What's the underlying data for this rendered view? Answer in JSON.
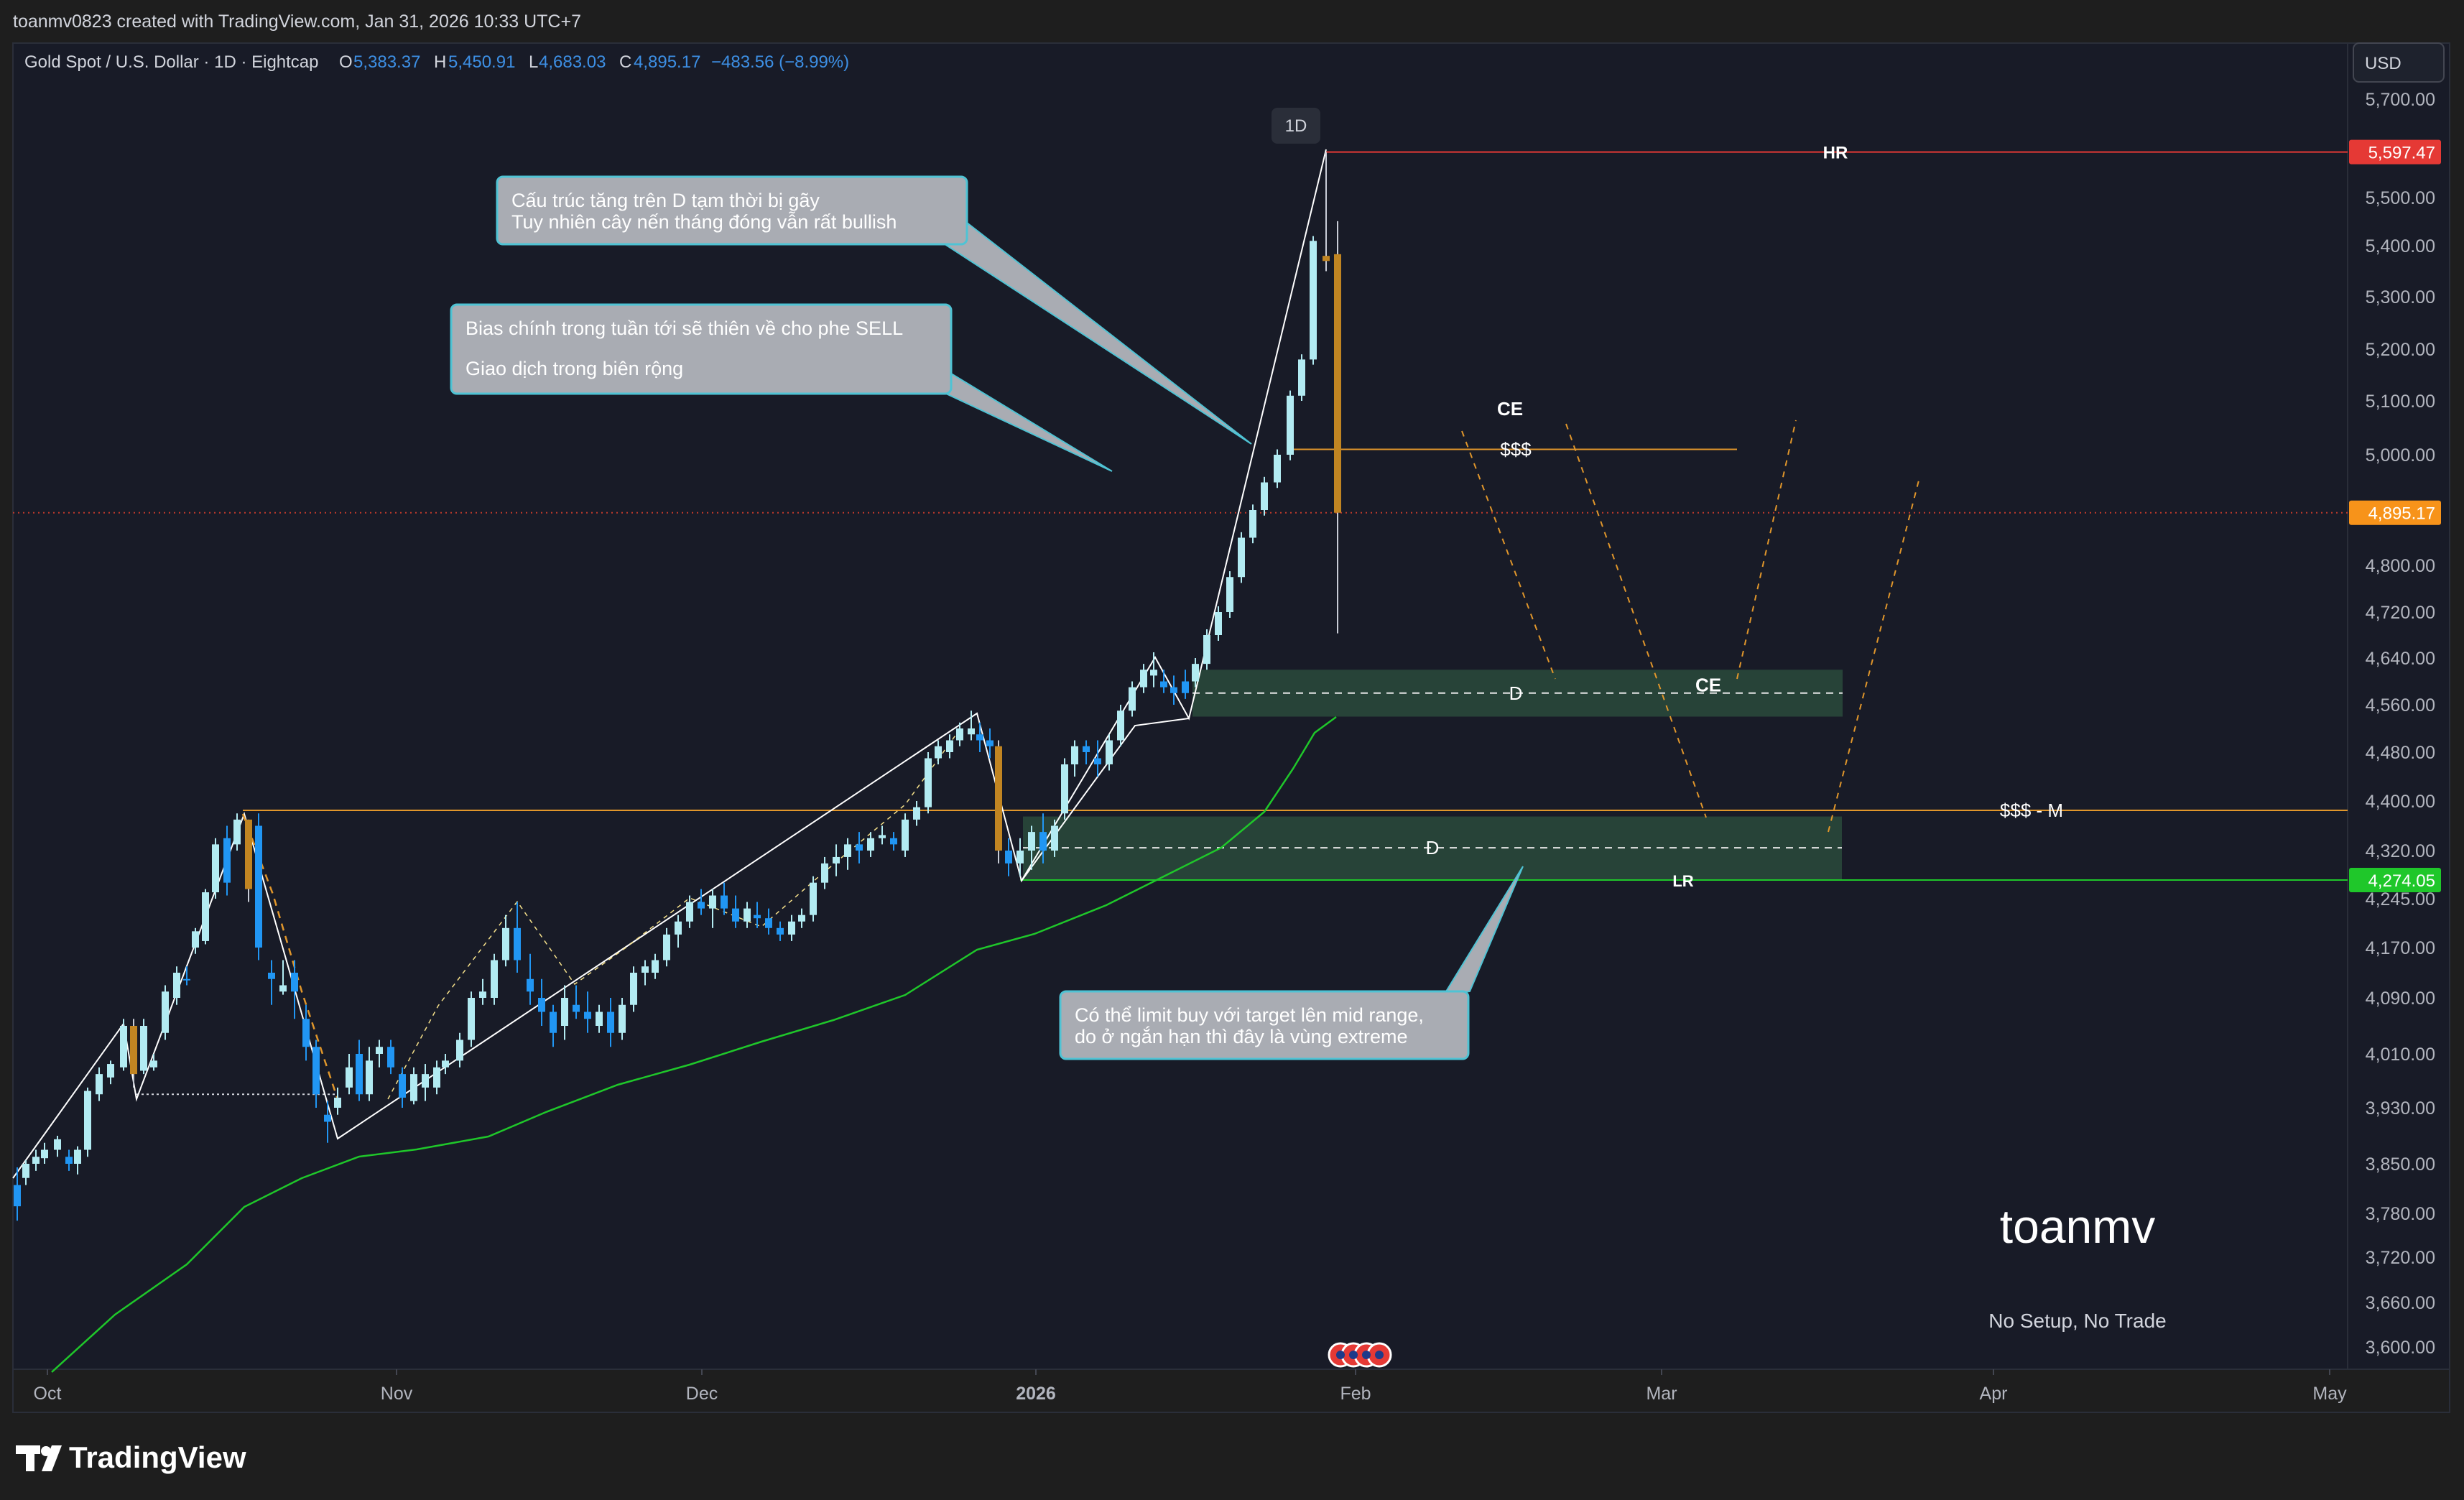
{
  "header": {
    "attribution": "toanmv0823 created with TradingView.com, Jan 31, 2026 10:33 UTC+7",
    "symbol": "Gold Spot / U.S. Dollar · 1D · Eightcap",
    "ohlc": [
      {
        "key": "O",
        "value": "5,383.37"
      },
      {
        "key": "H",
        "value": "5,450.91"
      },
      {
        "key": "L",
        "value": "4,683.03"
      },
      {
        "key": "C",
        "value": "4,895.17"
      }
    ],
    "change": "−483.56 (−8.99%)"
  },
  "currency": "USD",
  "interval_badge": "1D",
  "logo_text": "TradingView",
  "watermark": "toanmv",
  "note_bottom": "No Setup, No Trade",
  "colors": {
    "background": "#181b27",
    "candle_up": "#b2ebf2",
    "candle_down": "#2196f3",
    "highlight_candle": "#c18522",
    "ema": "#1fc72a",
    "level_orange": "#e0962b",
    "level_red": "#e53935",
    "zone": "#2a4a3c"
  },
  "chart_data": {
    "type": "candlestick",
    "title": "Gold Spot / U.S. Dollar · 1D · Eightcap",
    "xlabel": "",
    "ylabel": "",
    "x_ticks": [
      "Oct",
      "Nov",
      "Dec",
      "2026",
      "Feb",
      "Mar",
      "Apr",
      "May"
    ],
    "y_ticks": [
      "5,700.00",
      "5,600.00",
      "5,500.00",
      "5,400.00",
      "5,300.00",
      "5,200.00",
      "5,100.00",
      "5,000.00",
      "4,800.00",
      "4,720.00",
      "4,640.00",
      "4,560.00",
      "4,480.00",
      "4,400.00",
      "4,320.00",
      "4,245.00",
      "4,170.00",
      "4,090.00",
      "4,010.00",
      "3,930.00",
      "3,850.00",
      "3,780.00",
      "3,720.00",
      "3,660.00",
      "3,600.00"
    ],
    "y_tick_values": [
      5700,
      5600,
      5500,
      5400,
      5300,
      5200,
      5100,
      5000,
      4800,
      4720,
      4640,
      4560,
      4480,
      4400,
      4320,
      4245,
      4170,
      4090,
      4010,
      3930,
      3850,
      3780,
      3720,
      3660,
      3600
    ],
    "price_labels": [
      {
        "value": 5597.47,
        "text": "5,597.47",
        "color": "#e53935"
      },
      {
        "value": 4895.17,
        "text": "4,895.17",
        "color": "#f7931a"
      },
      {
        "value": 4274.05,
        "text": "4,274.05",
        "color": "#1fc72a"
      }
    ],
    "last_candle": {
      "open": 5383.37,
      "high": 5450.91,
      "low": 4683.03,
      "close": 4895.17
    },
    "levels": [
      {
        "label": "HR",
        "value": 5597.47,
        "color": "#e53935"
      },
      {
        "label": "$$$",
        "value": 5010,
        "color": "#e0962b"
      },
      {
        "label": "$$$ - M",
        "value": 4385,
        "color": "#e0962b"
      },
      {
        "label": "LR",
        "value": 4274.05,
        "color": "#1fc72a"
      }
    ],
    "zones": [
      {
        "label": "D",
        "low": 4540,
        "high": 4620,
        "mid_label": "CE"
      },
      {
        "label": "D",
        "low": 4274,
        "high": 4375
      }
    ],
    "annotations": [
      "CE",
      "Cấu trúc tăng trên D tạm thời bị gãy\nTuy nhiên cây nến tháng đóng vẫn rất bullish",
      "Bias chính trong tuần tới sẽ thiên về cho phe SELL\n\nGiao dịch trong biên rộng",
      "Có thể limit buy với target lên mid range,\ndo ở ngắn hạn thì đây là vùng extreme"
    ]
  }
}
